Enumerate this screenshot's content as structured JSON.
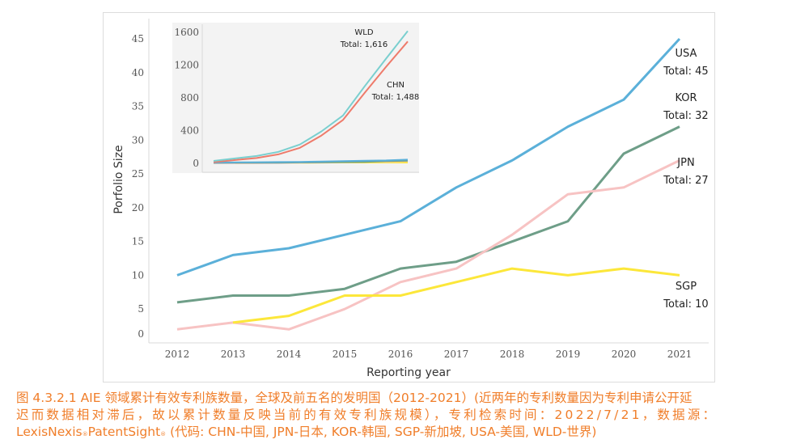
{
  "chart_data": [
    {
      "id": "main",
      "type": "line",
      "title": "",
      "xlabel": "Reporting year",
      "ylabel": "Porfolio Size",
      "x": [
        2012,
        2013,
        2014,
        2015,
        2016,
        2017,
        2018,
        2019,
        2020,
        2021
      ],
      "xtick_labels": [
        "2012",
        "2013",
        "2014",
        "2015",
        "2016",
        "2017",
        "2018",
        "2019",
        "2020",
        "2021"
      ],
      "ylim": [
        0,
        47
      ],
      "yticks": [
        0,
        5,
        10,
        15,
        20,
        25,
        30,
        35,
        40,
        45
      ],
      "ytick_labels": [
        "0",
        "5",
        "10",
        "15",
        "20",
        "25",
        "30",
        "35",
        "40",
        "45"
      ],
      "grid": false,
      "series": [
        {
          "name": "USA",
          "color": "#5BB0D9",
          "values": [
            10,
            13,
            14,
            16,
            18,
            23,
            27,
            32,
            36,
            45
          ],
          "label_line1": "USA",
          "label_line2": "Total: 45"
        },
        {
          "name": "KOR",
          "color": "#6E9E88",
          "values": [
            6,
            7,
            7,
            8,
            11,
            12,
            15,
            18,
            28,
            32
          ],
          "label_line1": "KOR",
          "label_line2": "Total: 32"
        },
        {
          "name": "JPN",
          "color": "#F7C3C3",
          "values": [
            2,
            3,
            2,
            5,
            9,
            11,
            16,
            22,
            23,
            27
          ],
          "label_line1": "JPN",
          "label_line2": "Total: 27"
        },
        {
          "name": "SGP",
          "color": "#FCE73A",
          "values": [
            null,
            3,
            4,
            7,
            7,
            9,
            11,
            10,
            11,
            10
          ],
          "label_line1": "SGP",
          "label_line2": "Total: 10"
        }
      ]
    },
    {
      "id": "inset",
      "type": "line",
      "title": "",
      "xlabel": "",
      "ylabel": "",
      "x": [
        2012,
        2013,
        2014,
        2015,
        2016,
        2017,
        2018,
        2019,
        2020,
        2021
      ],
      "ylim": [
        0,
        1650
      ],
      "yticks": [
        0,
        400,
        800,
        1200,
        1600
      ],
      "ytick_labels": [
        "0",
        "400",
        "800",
        "1200",
        "1600"
      ],
      "grid": false,
      "series": [
        {
          "name": "WLD",
          "color": "#7ACFCF",
          "values": [
            30,
            60,
            90,
            140,
            230,
            390,
            585,
            940,
            1280,
            1616
          ],
          "label_line1": "WLD",
          "label_line2": "Total: 1,616"
        },
        {
          "name": "CHN",
          "color": "#EE7B6B",
          "values": [
            15,
            40,
            65,
            110,
            190,
            340,
            530,
            860,
            1180,
            1488
          ],
          "label_line1": "CHN",
          "label_line2": "Total: 1,488"
        },
        {
          "name": "USA",
          "color": "#5BB0D9",
          "values": [
            10,
            13,
            14,
            16,
            18,
            23,
            27,
            32,
            36,
            45
          ]
        },
        {
          "name": "KOR",
          "color": "#6E9E88",
          "values": [
            6,
            7,
            7,
            8,
            11,
            12,
            15,
            18,
            28,
            32
          ]
        },
        {
          "name": "JPN",
          "color": "#F7C3C3",
          "values": [
            2,
            3,
            2,
            5,
            9,
            11,
            16,
            22,
            23,
            27
          ]
        },
        {
          "name": "SGP",
          "color": "#FCE73A",
          "values": [
            null,
            3,
            4,
            7,
            7,
            9,
            11,
            10,
            11,
            10
          ]
        }
      ]
    }
  ],
  "caption": {
    "line1": "图 4.3.2.1 AIE 领域累计有效专利族数量，全球及前五名的发明国（2012-2021）(近两年的专利数量因为专利申请公开延",
    "line2": "迟而数据相对滞后，故以累计数量反映当前的有效专利族规模），专利检索时间：2022/7/21，数据源：",
    "line3_a": "LexisNexis",
    "line3_reg1": "®",
    "line3_b": "PatentSight",
    "line3_reg2": "®",
    "line3_c": " (代码: CHN-中国, JPN-日本, KOR-韩国, SGP-新加坡, USA-美国, WLD-世界)"
  }
}
